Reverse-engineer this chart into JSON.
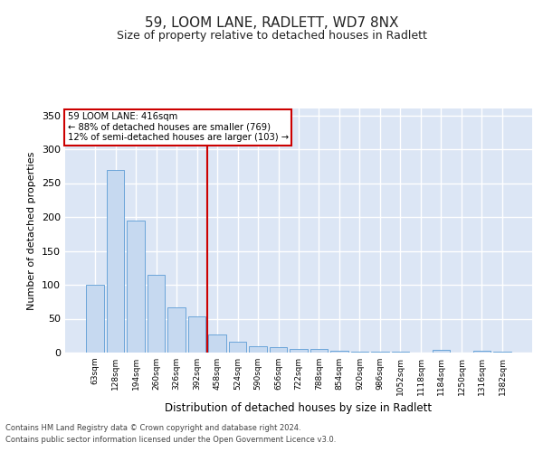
{
  "title1": "59, LOOM LANE, RADLETT, WD7 8NX",
  "title2": "Size of property relative to detached houses in Radlett",
  "xlabel": "Distribution of detached houses by size in Radlett",
  "ylabel": "Number of detached properties",
  "categories": [
    "63sqm",
    "128sqm",
    "194sqm",
    "260sqm",
    "326sqm",
    "392sqm",
    "458sqm",
    "524sqm",
    "590sqm",
    "656sqm",
    "722sqm",
    "788sqm",
    "854sqm",
    "920sqm",
    "986sqm",
    "1052sqm",
    "1118sqm",
    "1184sqm",
    "1250sqm",
    "1316sqm",
    "1382sqm"
  ],
  "values": [
    100,
    270,
    195,
    115,
    67,
    54,
    27,
    16,
    9,
    8,
    5,
    5,
    3,
    2,
    2,
    1,
    0,
    4,
    0,
    3,
    2
  ],
  "bar_color": "#c6d9f0",
  "bar_edge_color": "#5b9bd5",
  "vline_x": 5.5,
  "vline_color": "#cc0000",
  "annotation_line1": "59 LOOM LANE: 416sqm",
  "annotation_line2": "← 88% of detached houses are smaller (769)",
  "annotation_line3": "12% of semi-detached houses are larger (103) →",
  "annotation_box_color": "#cc0000",
  "background_color": "#dce6f5",
  "grid_color": "#ffffff",
  "footer1": "Contains HM Land Registry data © Crown copyright and database right 2024.",
  "footer2": "Contains public sector information licensed under the Open Government Licence v3.0.",
  "ylim": [
    0,
    360
  ],
  "yticks": [
    0,
    50,
    100,
    150,
    200,
    250,
    300,
    350
  ],
  "fig_width": 6.0,
  "fig_height": 5.0,
  "dpi": 100
}
